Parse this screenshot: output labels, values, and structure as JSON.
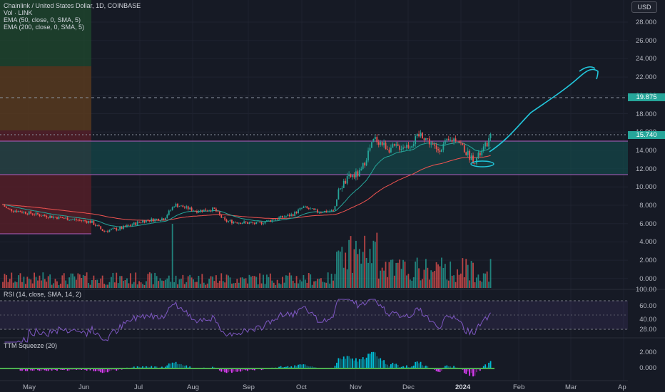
{
  "legend": {
    "title": "Chainlink / United States Dollar, 1D, COINBASE",
    "volume": "Vol · LINK",
    "ema50": "EMA (50, close, 0, SMA, 5)",
    "ema200": "EMA (200, close, 0, SMA, 5)"
  },
  "currency_label": "USD",
  "price_scale": [
    "28.000",
    "26.000",
    "24.000",
    "22.000",
    "20.000",
    "18.000",
    "16.000",
    "14.000",
    "12.000",
    "10.000",
    "8.000",
    "6.000",
    "4.000",
    "2.000",
    "0.000"
  ],
  "price_tags": {
    "target": "19.875",
    "last": "15.740"
  },
  "rsi": {
    "title": "RSI (14, close, SMA, 14, 2)",
    "ticks": [
      "100.00",
      "60.00",
      "40.00",
      "28.00"
    ]
  },
  "squeeze": {
    "title": "TTM Squeeze (20)",
    "ticks": [
      "2.000",
      "0.000"
    ]
  },
  "time_axis": [
    "May",
    "Jun",
    "Jul",
    "Aug",
    "Sep",
    "Oct",
    "Nov",
    "Dec",
    "2024",
    "Feb",
    "Mar",
    "Ap"
  ],
  "colors": {
    "bg": "#161a25",
    "up": "#26a69a",
    "down": "#ef5350",
    "ema50": "#26a69a",
    "ema200": "#ef5350",
    "rsi": "#7e57c2",
    "drawing": "#22c7dc"
  },
  "chart_data": {
    "type": "candlestick",
    "symbol": "LINK/USD",
    "interval": "1D",
    "ylim": [
      0,
      29
    ],
    "series": [
      {
        "name": "Price",
        "x": [
          "May",
          "Jun",
          "Jul",
          "Aug",
          "Sep",
          "Oct",
          "Nov",
          "Dec",
          "2024"
        ],
        "values": [
          7.2,
          6.0,
          6.4,
          7.9,
          6.3,
          7.4,
          14.6,
          15.2,
          14.8
        ]
      },
      {
        "name": "EMA (50, close, 0, SMA, 5)",
        "x": [
          "May",
          "Jun",
          "Jul",
          "Aug",
          "Sep",
          "Oct",
          "Nov",
          "Dec",
          "2024"
        ],
        "values": [
          7.3,
          6.5,
          6.2,
          7.0,
          6.6,
          7.0,
          9.5,
          13.0,
          14.0
        ]
      },
      {
        "name": "EMA (200, close, 0, SMA, 5)",
        "x": [
          "May",
          "Jun",
          "Jul",
          "Aug",
          "Sep",
          "Oct",
          "Nov",
          "Dec",
          "2024"
        ],
        "values": [
          7.4,
          7.0,
          6.8,
          6.9,
          6.8,
          7.0,
          8.2,
          9.8,
          11.0
        ]
      }
    ]
  }
}
